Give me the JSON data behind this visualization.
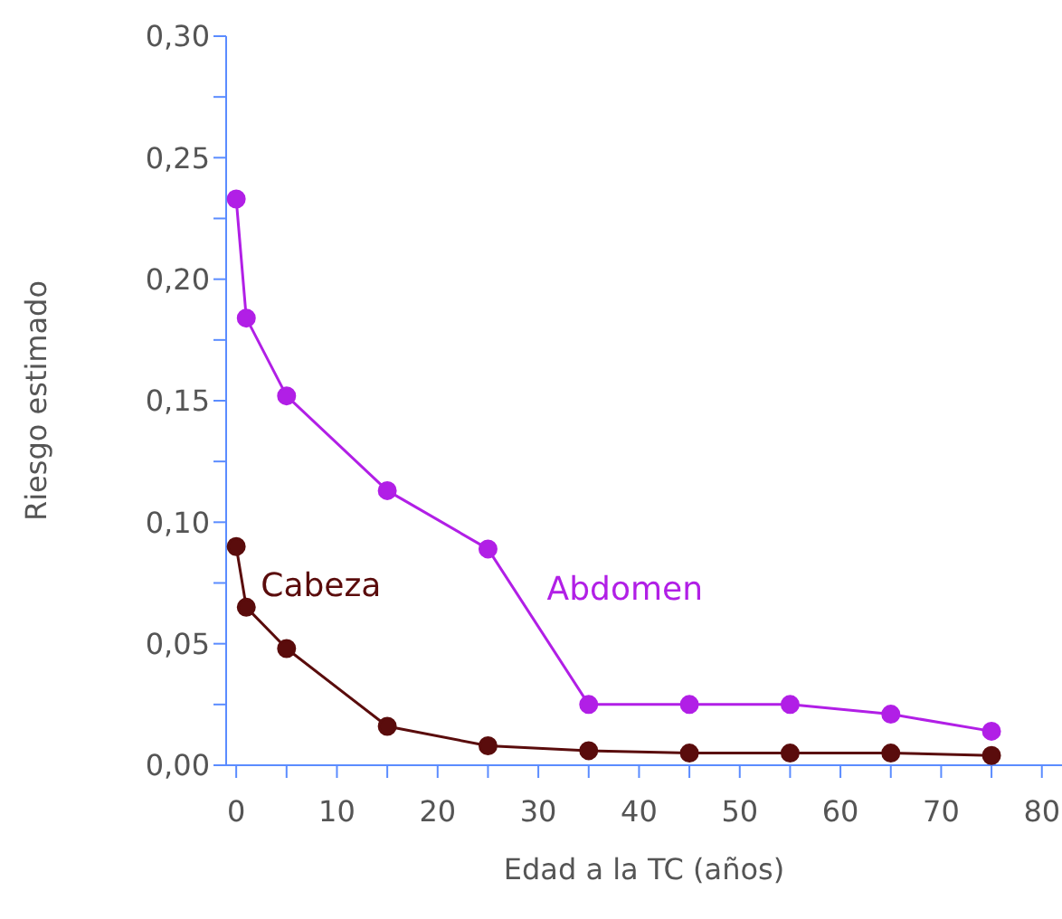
{
  "chart_data": {
    "type": "line",
    "xlabel": "Edad a la TC (años)",
    "ylabel": "Riesgo estimado",
    "xlim": [
      -1,
      82
    ],
    "xticks": [
      0,
      {
        "value": 5,
        "label": null
      },
      10,
      {
        "value": 15,
        "label": null
      },
      20,
      {
        "value": 25,
        "label": null
      },
      30,
      {
        "value": 35,
        "label": null
      },
      40,
      {
        "value": 45,
        "label": null
      },
      50,
      {
        "value": 55,
        "label": null
      },
      60,
      {
        "value": 65,
        "label": null
      },
      70,
      {
        "value": 75,
        "label": null
      },
      80
    ],
    "ylim": [
      0,
      0.3
    ],
    "yticks": [
      {
        "value": 0,
        "label": "0,00"
      },
      {
        "value": 0.025,
        "label": null
      },
      {
        "value": 0.05,
        "label": "0,05"
      },
      {
        "value": 0.075,
        "label": null
      },
      {
        "value": 0.1,
        "label": "0,10"
      },
      {
        "value": 0.125,
        "label": null
      },
      {
        "value": 0.15,
        "label": "0,15"
      },
      {
        "value": 0.175,
        "label": null
      },
      {
        "value": 0.2,
        "label": "0,20"
      },
      {
        "value": 0.225,
        "label": null
      },
      {
        "value": 0.25,
        "label": "0,25"
      },
      {
        "value": 0.275,
        "label": null
      },
      {
        "value": 0.3,
        "label": "0,30"
      }
    ],
    "x": [
      0,
      1,
      5,
      15,
      25,
      35,
      45,
      55,
      65,
      75
    ],
    "series": [
      {
        "name": "Abdomen",
        "color": "#b11fe6",
        "values": [
          0.233,
          0.184,
          0.152,
          0.113,
          0.089,
          0.025,
          0.025,
          0.025,
          0.021,
          0.014
        ]
      },
      {
        "name": "Cabeza",
        "color": "#5a0c0c",
        "values": [
          0.09,
          0.065,
          0.048,
          0.016,
          0.008,
          0.006,
          0.005,
          0.005,
          0.005,
          0.004
        ]
      }
    ],
    "marker": "circle",
    "line_style": "solid",
    "grid": false,
    "legend": false
  }
}
